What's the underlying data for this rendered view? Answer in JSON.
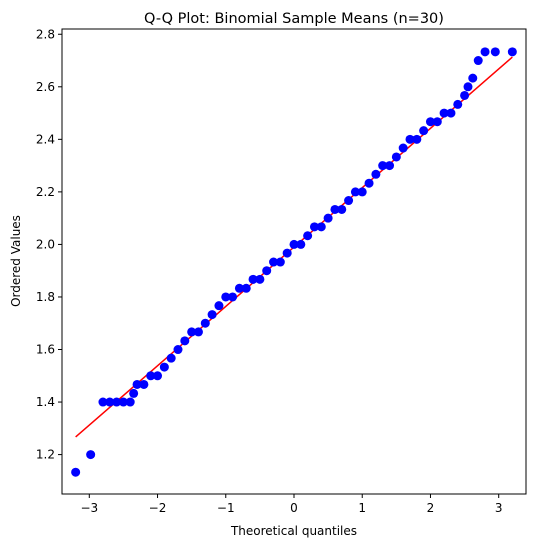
{
  "chart_data": {
    "type": "scatter",
    "title": "Q-Q Plot: Binomial Sample Means (n=30)",
    "xlabel": "Theoretical quantiles",
    "ylabel": "Ordered Values",
    "xlim": [
      -3.4,
      3.4
    ],
    "ylim": [
      1.05,
      2.82
    ],
    "xticks": [
      -3,
      -2,
      -1,
      0,
      1,
      2,
      3
    ],
    "yticks": [
      1.2,
      1.4,
      1.6,
      1.8,
      2.0,
      2.2,
      2.4,
      2.6,
      2.8
    ],
    "xtick_labels": [
      "−3",
      "−2",
      "−1",
      "0",
      "1",
      "2",
      "3"
    ],
    "ytick_labels": [
      "1.2",
      "1.4",
      "1.6",
      "1.8",
      "2.0",
      "2.2",
      "2.4",
      "2.6",
      "2.8"
    ],
    "grid": false,
    "point_color": "#0000ff",
    "line_color": "#ff0000",
    "series": [
      {
        "values": [
          [
            -3.2,
            1.133
          ],
          [
            -2.98,
            1.2
          ],
          [
            -2.8,
            1.4
          ],
          [
            -2.7,
            1.4
          ],
          [
            -2.6,
            1.4
          ],
          [
            -2.5,
            1.4
          ],
          [
            -2.4,
            1.4
          ],
          [
            -2.35,
            1.433
          ],
          [
            -2.3,
            1.467
          ],
          [
            -2.2,
            1.467
          ],
          [
            -2.1,
            1.5
          ],
          [
            -2.0,
            1.5
          ],
          [
            -1.9,
            1.533
          ],
          [
            -1.8,
            1.567
          ],
          [
            -1.7,
            1.6
          ],
          [
            -1.6,
            1.633
          ],
          [
            -1.5,
            1.667
          ],
          [
            -1.4,
            1.667
          ],
          [
            -1.3,
            1.7
          ],
          [
            -1.2,
            1.733
          ],
          [
            -1.1,
            1.767
          ],
          [
            -1.0,
            1.8
          ],
          [
            -0.9,
            1.8
          ],
          [
            -0.8,
            1.833
          ],
          [
            -0.7,
            1.833
          ],
          [
            -0.6,
            1.867
          ],
          [
            -0.5,
            1.867
          ],
          [
            -0.4,
            1.9
          ],
          [
            -0.3,
            1.933
          ],
          [
            -0.2,
            1.933
          ],
          [
            -0.1,
            1.967
          ],
          [
            0.0,
            2.0
          ],
          [
            0.1,
            2.0
          ],
          [
            0.2,
            2.033
          ],
          [
            0.3,
            2.067
          ],
          [
            0.4,
            2.067
          ],
          [
            0.5,
            2.1
          ],
          [
            0.6,
            2.133
          ],
          [
            0.7,
            2.133
          ],
          [
            0.8,
            2.167
          ],
          [
            0.9,
            2.2
          ],
          [
            1.0,
            2.2
          ],
          [
            1.1,
            2.233
          ],
          [
            1.2,
            2.267
          ],
          [
            1.3,
            2.3
          ],
          [
            1.4,
            2.3
          ],
          [
            1.5,
            2.333
          ],
          [
            1.6,
            2.367
          ],
          [
            1.7,
            2.4
          ],
          [
            1.8,
            2.4
          ],
          [
            1.9,
            2.433
          ],
          [
            2.0,
            2.467
          ],
          [
            2.1,
            2.467
          ],
          [
            2.2,
            2.5
          ],
          [
            2.3,
            2.5
          ],
          [
            2.4,
            2.533
          ],
          [
            2.5,
            2.567
          ],
          [
            2.55,
            2.6
          ],
          [
            2.62,
            2.633
          ],
          [
            2.7,
            2.7
          ],
          [
            2.8,
            2.733
          ],
          [
            2.95,
            2.733
          ],
          [
            3.2,
            2.733
          ]
        ]
      }
    ],
    "fit_line": {
      "x": [
        -3.2,
        3.2
      ],
      "y": [
        1.267,
        2.713
      ]
    }
  }
}
